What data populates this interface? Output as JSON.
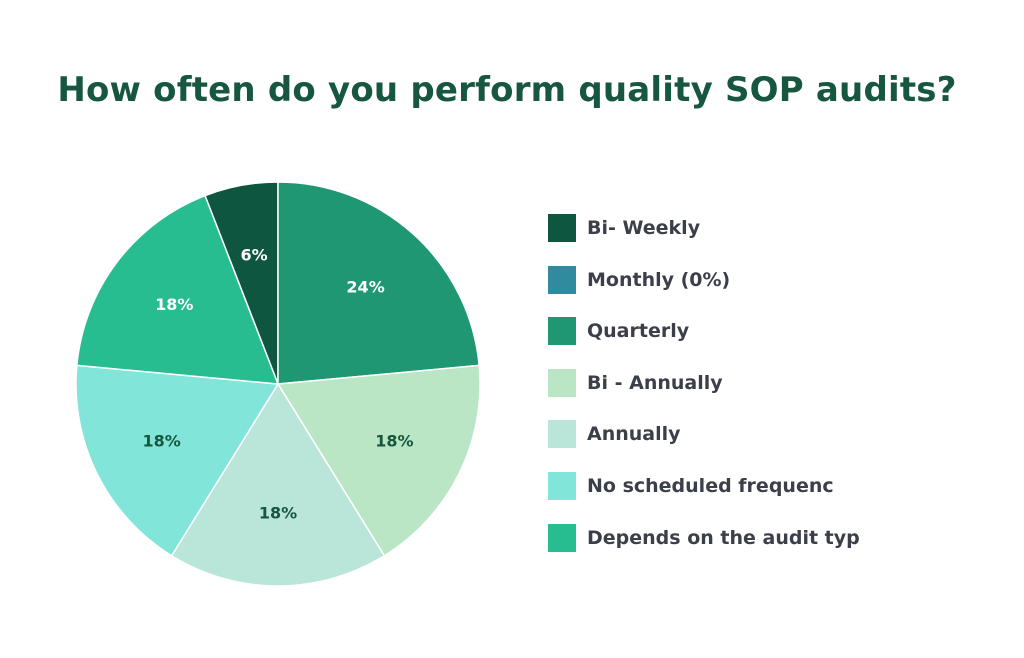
{
  "chart_data": {
    "type": "pie",
    "title": "How often do you perform quality SOP audits?",
    "legend_position": "right",
    "slices": [
      {
        "name": "Bi- Weekly",
        "value": 6,
        "label": "6%",
        "color": "#0f5641",
        "label_color": "#ffffff"
      },
      {
        "name": "Monthly (0%)",
        "value": 0,
        "label": "",
        "color": "#2f8b9d",
        "label_color": "#ffffff"
      },
      {
        "name": "Quarterly",
        "value": 24,
        "label": "24%",
        "color": "#1e9772",
        "label_color": "#ffffff"
      },
      {
        "name": "Bi - Annually",
        "value": 18,
        "label": "18%",
        "color": "#bae6c5",
        "label_color": "#17563f"
      },
      {
        "name": "Annually",
        "value": 18,
        "label": "18%",
        "color": "#bae6da",
        "label_color": "#17563f"
      },
      {
        "name": "No scheduled frequenc",
        "value": 18,
        "label": "18%",
        "color": "#82e5d9",
        "label_color": "#17563f"
      },
      {
        "name": "Depends on the audit typ",
        "value": 18,
        "label": "18%",
        "color": "#27bd90",
        "label_color": "#ffffff"
      }
    ]
  }
}
